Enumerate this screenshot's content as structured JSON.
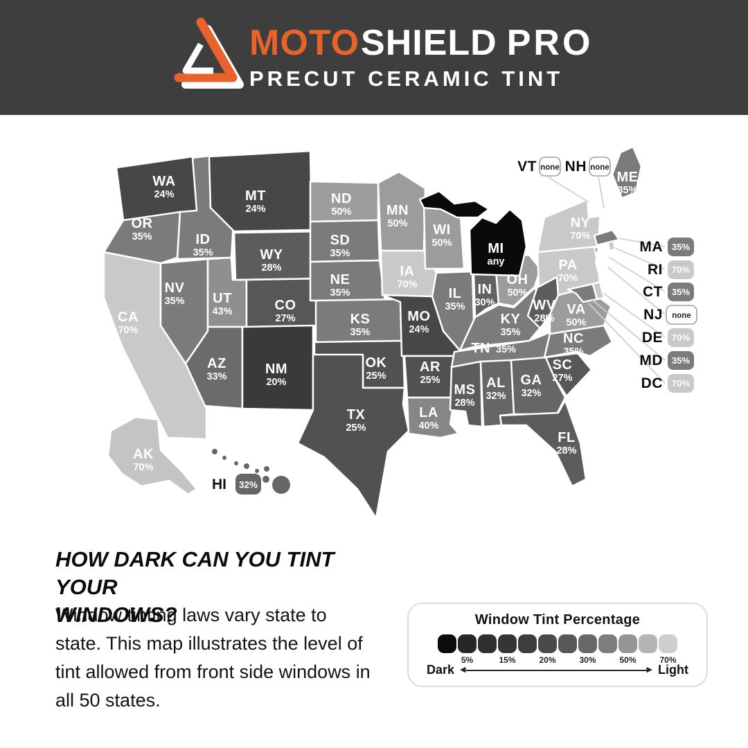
{
  "header": {
    "brand_moto": "MOTO",
    "brand_shield": "SHIELD",
    "brand_pro": "PRO",
    "subtitle": "PRECUT CERAMIC TINT",
    "bg_color": "#3e3e3e",
    "accent_color": "#e8632c"
  },
  "map": {
    "states": [
      {
        "abbr": "WA",
        "value": "24%",
        "color": "#474747"
      },
      {
        "abbr": "OR",
        "value": "35%",
        "color": "#7b7b7b"
      },
      {
        "abbr": "CA",
        "value": "70%",
        "color": "#c9c9c9"
      },
      {
        "abbr": "NV",
        "value": "35%",
        "color": "#7b7b7b"
      },
      {
        "abbr": "ID",
        "value": "35%",
        "color": "#7b7b7b"
      },
      {
        "abbr": "UT",
        "value": "43%",
        "color": "#8f8f8f"
      },
      {
        "abbr": "AZ",
        "value": "33%",
        "color": "#6b6b6b"
      },
      {
        "abbr": "MT",
        "value": "24%",
        "color": "#474747"
      },
      {
        "abbr": "WY",
        "value": "28%",
        "color": "#5c5c5c"
      },
      {
        "abbr": "CO",
        "value": "27%",
        "color": "#575757"
      },
      {
        "abbr": "NM",
        "value": "20%",
        "color": "#3a3a3a"
      },
      {
        "abbr": "ND",
        "value": "50%",
        "color": "#9c9c9c"
      },
      {
        "abbr": "SD",
        "value": "35%",
        "color": "#7b7b7b"
      },
      {
        "abbr": "NE",
        "value": "35%",
        "color": "#7b7b7b"
      },
      {
        "abbr": "KS",
        "value": "35%",
        "color": "#7b7b7b"
      },
      {
        "abbr": "OK",
        "value": "25%",
        "color": "#515151"
      },
      {
        "abbr": "TX",
        "value": "25%",
        "color": "#515151"
      },
      {
        "abbr": "MN",
        "value": "50%",
        "color": "#9c9c9c"
      },
      {
        "abbr": "IA",
        "value": "70%",
        "color": "#c9c9c9"
      },
      {
        "abbr": "MO",
        "value": "24%",
        "color": "#474747"
      },
      {
        "abbr": "AR",
        "value": "25%",
        "color": "#515151"
      },
      {
        "abbr": "LA",
        "value": "40%",
        "color": "#868686"
      },
      {
        "abbr": "WI",
        "value": "50%",
        "color": "#9c9c9c"
      },
      {
        "abbr": "IL",
        "value": "35%",
        "color": "#7b7b7b"
      },
      {
        "abbr": "IN",
        "value": "30%",
        "color": "#616161"
      },
      {
        "abbr": "OH",
        "value": "50%",
        "color": "#9c9c9c"
      },
      {
        "abbr": "MI",
        "value": "any",
        "color": "#0a0a0a"
      },
      {
        "abbr": "KY",
        "value": "35%",
        "color": "#7b7b7b"
      },
      {
        "abbr": "TN",
        "value": "35%",
        "color": "#7b7b7b"
      },
      {
        "abbr": "MS",
        "value": "28%",
        "color": "#5c5c5c"
      },
      {
        "abbr": "AL",
        "value": "32%",
        "color": "#666666"
      },
      {
        "abbr": "GA",
        "value": "32%",
        "color": "#666666"
      },
      {
        "abbr": "FL",
        "value": "28%",
        "color": "#5c5c5c"
      },
      {
        "abbr": "SC",
        "value": "27%",
        "color": "#575757"
      },
      {
        "abbr": "NC",
        "value": "35%",
        "color": "#7b7b7b"
      },
      {
        "abbr": "VA",
        "value": "50%",
        "color": "#9c9c9c"
      },
      {
        "abbr": "WV",
        "value": "28%",
        "color": "#5c5c5c"
      },
      {
        "abbr": "PA",
        "value": "70%",
        "color": "#c9c9c9"
      },
      {
        "abbr": "NY",
        "value": "70%",
        "color": "#c9c9c9"
      },
      {
        "abbr": "ME",
        "value": "35%",
        "color": "#7b7b7b"
      },
      {
        "abbr": "AK",
        "value": "70%",
        "color": "#c4c4c4"
      },
      {
        "abbr": "HI",
        "value": "32%",
        "color": "#666666"
      },
      {
        "abbr": "MA",
        "value": "35%",
        "color": "#7b7b7b",
        "label": false
      },
      {
        "abbr": "CT",
        "value": "35%",
        "color": "#7b7b7b",
        "label": false
      },
      {
        "abbr": "RI",
        "value": "70%",
        "color": "#c9c9c9",
        "label": false
      },
      {
        "abbr": "NJ",
        "value": "none",
        "color": "#ffffff",
        "label": false
      },
      {
        "abbr": "VT",
        "value": "none",
        "color": "#ffffff",
        "label": false
      },
      {
        "abbr": "NH",
        "value": "none",
        "color": "#ffffff",
        "label": false
      },
      {
        "abbr": "MD",
        "value": "35%",
        "color": "#7b7b7b",
        "label": false
      },
      {
        "abbr": "DE",
        "value": "70%",
        "color": "#c9c9c9",
        "label": false
      }
    ],
    "callouts": [
      {
        "abbr": "VT",
        "value": "none",
        "badge_color": "#ffffff",
        "text_color": "#222222"
      },
      {
        "abbr": "NH",
        "value": "none",
        "badge_color": "#ffffff",
        "text_color": "#222222"
      },
      {
        "abbr": "MA",
        "value": "35%",
        "badge_color": "#7b7b7b",
        "text_color": "#ffffff"
      },
      {
        "abbr": "RI",
        "value": "70%",
        "badge_color": "#c9c9c9",
        "text_color": "#ffffff"
      },
      {
        "abbr": "CT",
        "value": "35%",
        "badge_color": "#7b7b7b",
        "text_color": "#ffffff"
      },
      {
        "abbr": "NJ",
        "value": "none",
        "badge_color": "#ffffff",
        "text_color": "#222222"
      },
      {
        "abbr": "DE",
        "value": "70%",
        "badge_color": "#c9c9c9",
        "text_color": "#ffffff"
      },
      {
        "abbr": "MD",
        "value": "35%",
        "badge_color": "#7b7b7b",
        "text_color": "#ffffff"
      },
      {
        "abbr": "DC",
        "value": "70%",
        "badge_color": "#c9c9c9",
        "text_color": "#ffffff"
      }
    ]
  },
  "footer": {
    "heading_line1": "HOW DARK CAN YOU TINT YOUR",
    "heading_line2": "WINDOWS?",
    "paragraph": "Window tinting laws vary state to state. This map illustrates the level of tint allowed from front side windows in all 50 states.",
    "legend": {
      "title": "Window Tint Percentage",
      "swatches": [
        "#0b0b0b",
        "#272727",
        "#2f2f2f",
        "#353535",
        "#3d3d3d",
        "#4a4a4a",
        "#585858",
        "#686868",
        "#7d7d7d",
        "#959595",
        "#b4b4b4",
        "#cecece"
      ],
      "tick_labels": [
        "5%",
        "15%",
        "20%",
        "30%",
        "50%",
        "70%"
      ],
      "dark_label": "Dark",
      "light_label": "Light"
    }
  }
}
